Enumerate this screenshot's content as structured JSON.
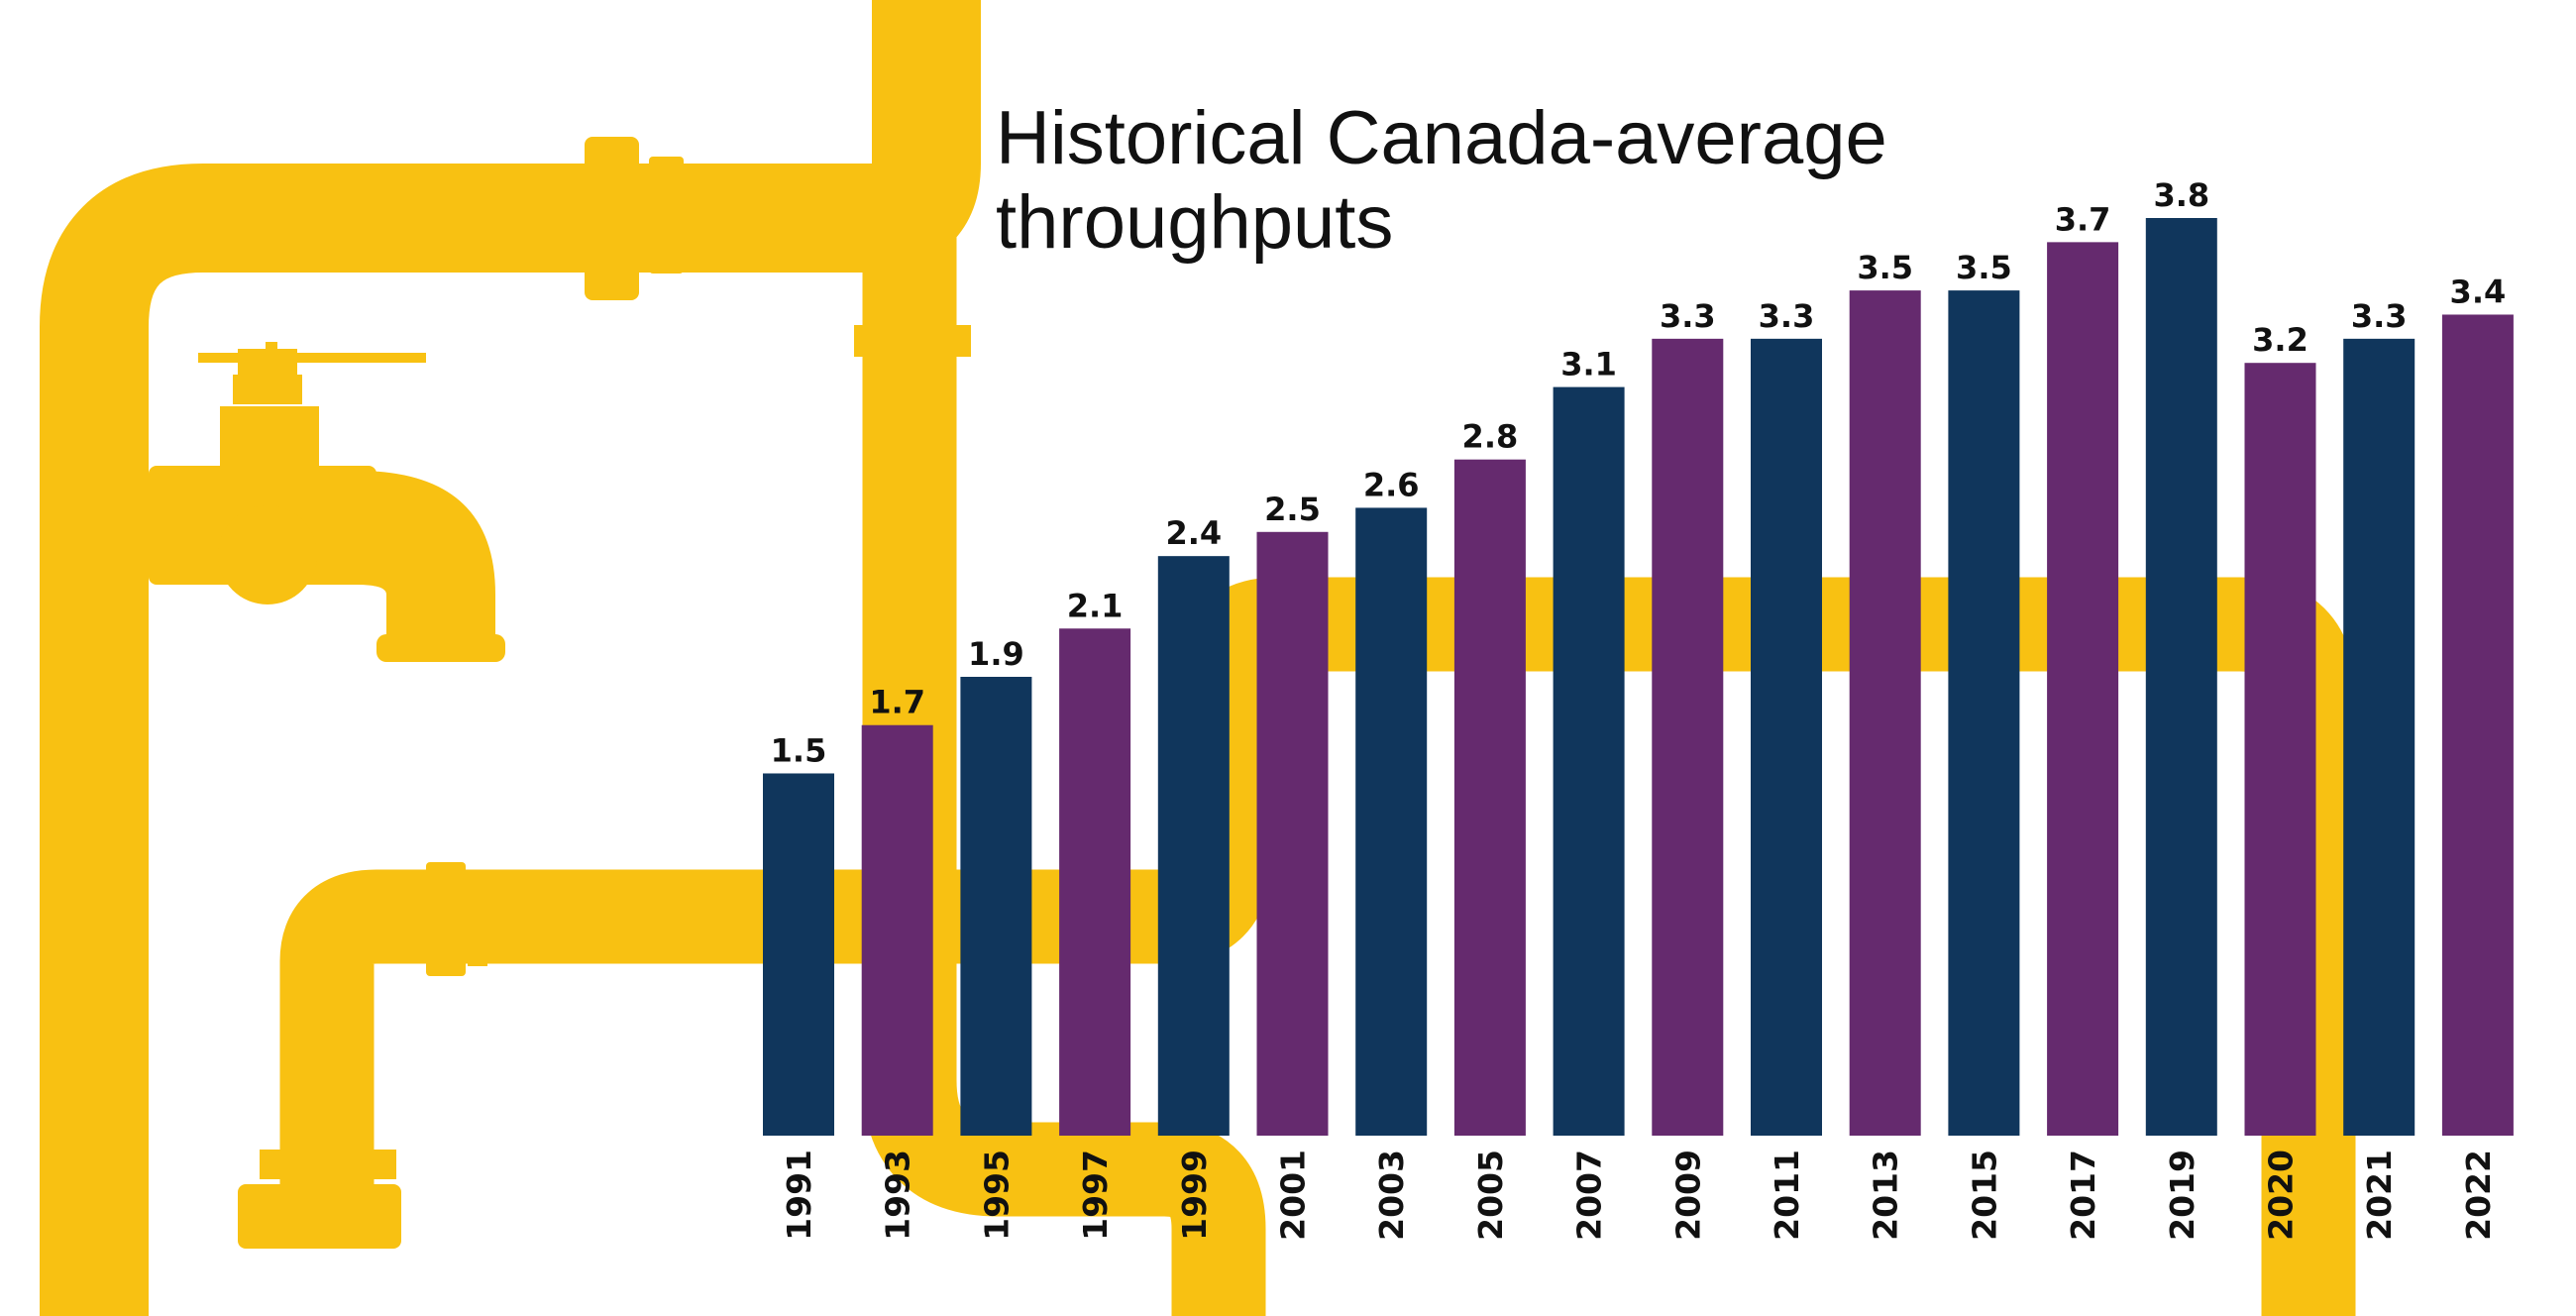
{
  "chart_data": {
    "type": "bar",
    "title_lines": [
      "Historical Canada-average",
      "throughputs"
    ],
    "xlabel": "",
    "ylabel": "",
    "ylim": [
      0,
      3.8
    ],
    "grid": false,
    "legend": "none",
    "categories": [
      "1991",
      "1993",
      "1995",
      "1997",
      "1999",
      "2001",
      "2003",
      "2005",
      "2007",
      "2009",
      "2011",
      "2013",
      "2015",
      "2017",
      "2019",
      "2020",
      "2021",
      "2022"
    ],
    "values": [
      1.5,
      1.7,
      1.9,
      2.1,
      2.4,
      2.5,
      2.6,
      2.8,
      3.1,
      3.3,
      3.3,
      3.5,
      3.5,
      3.7,
      3.8,
      3.2,
      3.3,
      3.4
    ],
    "value_labels": [
      "1.5",
      "1.7",
      "1.9",
      "2.1",
      "2.4",
      "2.5",
      "2.6",
      "2.8",
      "3.1",
      "3.3",
      "3.3",
      "3.5",
      "3.5",
      "3.7",
      "3.8",
      "3.2",
      "3.3",
      "3.4"
    ],
    "bar_colors": [
      "#10365c",
      "#652a6e"
    ],
    "pipe_color": "#f8c112"
  }
}
